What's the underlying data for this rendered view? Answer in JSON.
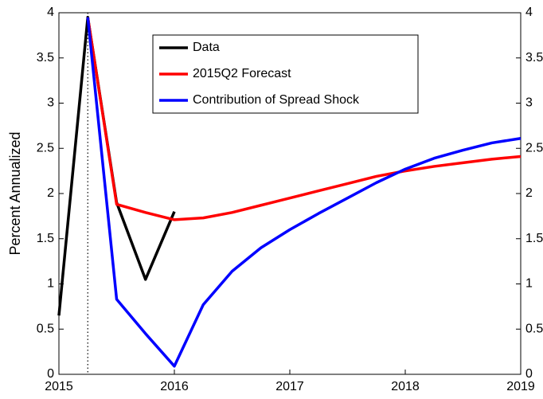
{
  "chart_data": {
    "type": "line",
    "ylabel": "Percent Annualized",
    "xlim": [
      2015,
      2019
    ],
    "xticks": [
      2015,
      2016,
      2017,
      2018,
      2019
    ],
    "ylim": [
      0,
      4
    ],
    "yticks": [
      0,
      0.5,
      1,
      1.5,
      2,
      2.5,
      3,
      3.5,
      4
    ],
    "y2lim": [
      0,
      4
    ],
    "y2ticks": [
      0,
      0.5,
      1,
      1.5,
      2,
      2.5,
      3,
      3.5,
      4
    ],
    "vline": 2015.25,
    "legend": "top",
    "series": [
      {
        "name": "Data",
        "color": "#000000",
        "x": [
          2015,
          2015.25,
          2015.5,
          2015.75,
          2016
        ],
        "values": [
          0.65,
          3.95,
          1.9,
          1.05,
          1.8
        ]
      },
      {
        "name": "2015Q2 Forecast",
        "color": "#ff0000",
        "x": [
          2015.25,
          2015.5,
          2015.75,
          2016,
          2016.25,
          2016.5,
          2016.75,
          2017,
          2017.25,
          2017.5,
          2017.75,
          2018,
          2018.25,
          2018.5,
          2018.75,
          2019
        ],
        "values": [
          3.95,
          1.88,
          1.79,
          1.71,
          1.73,
          1.79,
          1.87,
          1.95,
          2.03,
          2.11,
          2.19,
          2.25,
          2.3,
          2.34,
          2.38,
          2.41
        ]
      },
      {
        "name": "Contribution of Spread Shock",
        "color": "#0000ff",
        "x": [
          2015.25,
          2015.5,
          2015.75,
          2016,
          2016.25,
          2016.5,
          2016.75,
          2017,
          2017.25,
          2017.5,
          2017.75,
          2018,
          2018.25,
          2018.5,
          2018.75,
          2019
        ],
        "values": [
          3.95,
          0.83,
          0.45,
          0.09,
          0.77,
          1.14,
          1.4,
          1.6,
          1.78,
          1.95,
          2.12,
          2.27,
          2.39,
          2.48,
          2.56,
          2.61
        ]
      }
    ]
  }
}
